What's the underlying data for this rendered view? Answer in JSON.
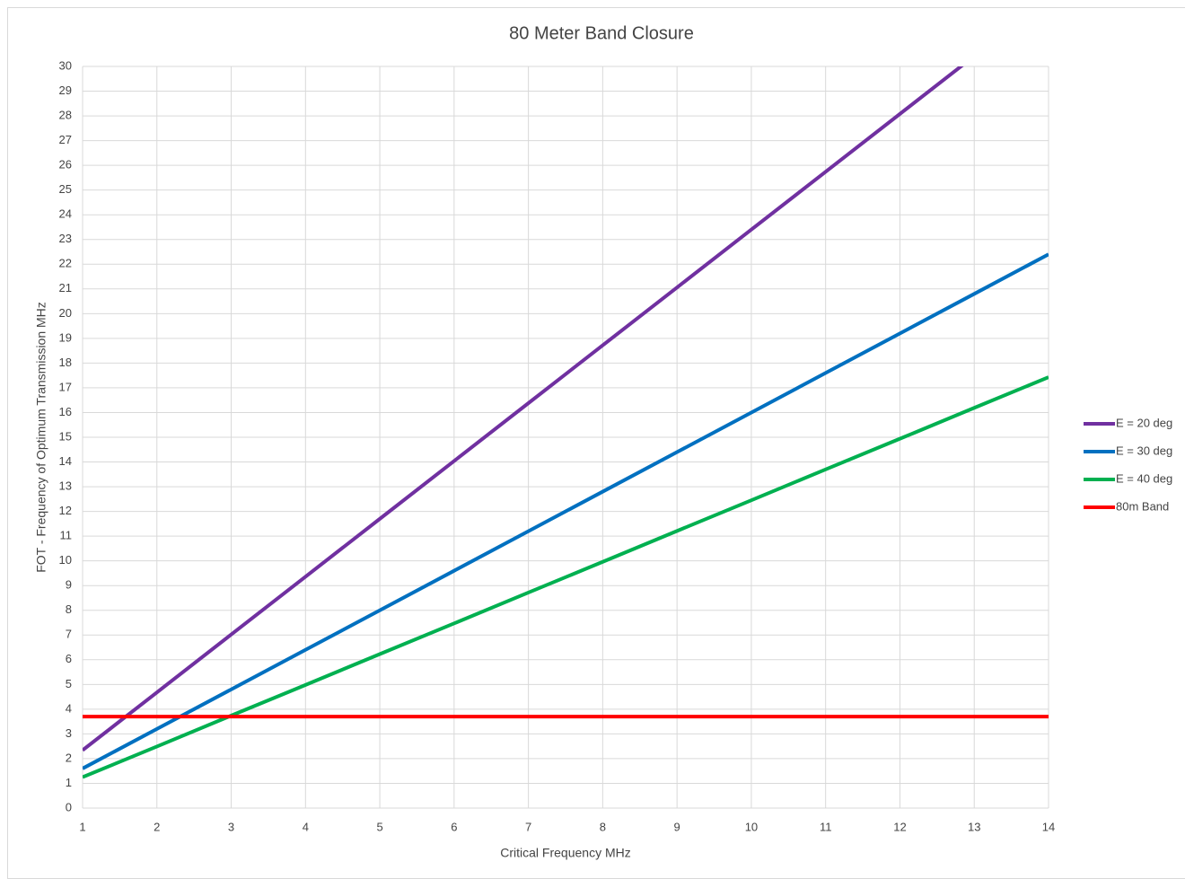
{
  "chart_data": {
    "type": "line",
    "title": "80 Meter Band Closure",
    "x_label": "Critical Frequency  MHz",
    "y_label": "FOT - Frequency of Optimum Transmission  MHz",
    "x": [
      1,
      2,
      3,
      4,
      5,
      6,
      7,
      8,
      9,
      10,
      11,
      12,
      13,
      14
    ],
    "series": [
      {
        "name": "E = 20 deg",
        "color": "#7030a0",
        "values": [
          2.34,
          4.68,
          7.02,
          9.36,
          11.7,
          14.04,
          16.38,
          18.72,
          21.06,
          23.4,
          25.74,
          28.08,
          30.42,
          32.76
        ]
      },
      {
        "name": "E = 30 deg",
        "color": "#0070c0",
        "values": [
          1.6,
          3.2,
          4.8,
          6.4,
          8.0,
          9.6,
          11.2,
          12.8,
          14.4,
          16.0,
          17.6,
          19.2,
          20.8,
          22.4
        ]
      },
      {
        "name": "E = 40 deg",
        "color": "#00b050",
        "values": [
          1.25,
          2.49,
          3.74,
          4.98,
          6.23,
          7.47,
          8.72,
          9.96,
          11.21,
          12.45,
          13.7,
          14.94,
          16.19,
          17.43
        ]
      },
      {
        "name": "80m Band",
        "color": "#ff0000",
        "values": [
          3.7,
          3.7,
          3.7,
          3.7,
          3.7,
          3.7,
          3.7,
          3.7,
          3.7,
          3.7,
          3.7,
          3.7,
          3.7,
          3.7
        ]
      }
    ],
    "xlim": [
      1,
      14
    ],
    "xticks": [
      1,
      2,
      3,
      4,
      5,
      6,
      7,
      8,
      9,
      10,
      11,
      12,
      13,
      14
    ],
    "ylim": [
      0,
      30
    ],
    "yticks": [
      0,
      1,
      2,
      3,
      4,
      5,
      6,
      7,
      8,
      9,
      10,
      11,
      12,
      13,
      14,
      15,
      16,
      17,
      18,
      19,
      20,
      21,
      22,
      23,
      24,
      25,
      26,
      27,
      28,
      29,
      30
    ],
    "grid": true,
    "legend": "right"
  }
}
